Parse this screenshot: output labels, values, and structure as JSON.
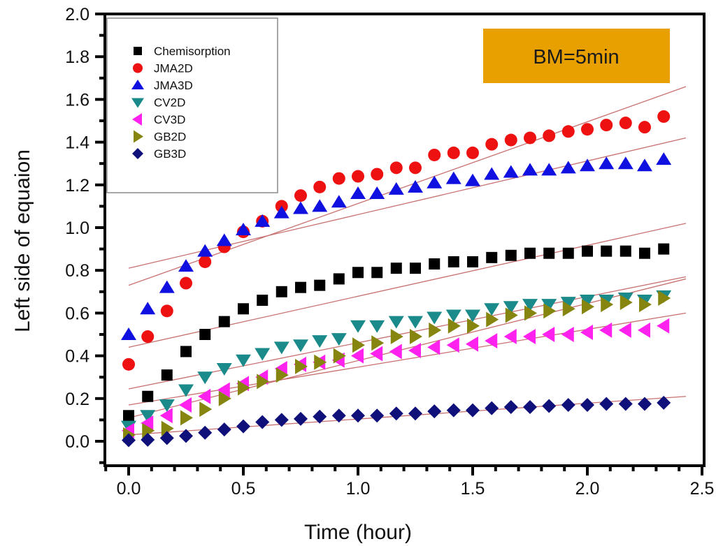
{
  "chart_data": {
    "type": "scatter",
    "title": "",
    "xlabel": "Time (hour)",
    "ylabel": "Left side of equaion",
    "xlim": [
      -0.1,
      2.5
    ],
    "ylim": [
      -0.1,
      2.0
    ],
    "xticks": [
      0.0,
      0.5,
      1.0,
      1.5,
      2.0,
      2.5
    ],
    "xtick_labels": [
      "0.0",
      "0.5",
      "1.0",
      "1.5",
      "2.0",
      "2.5"
    ],
    "yticks": [
      0.0,
      0.2,
      0.4,
      0.6,
      0.8,
      1.0,
      1.2,
      1.4,
      1.6,
      1.8,
      2.0
    ],
    "ytick_labels": [
      "0.0",
      "0.2",
      "0.4",
      "0.6",
      "0.8",
      "1.0",
      "1.2",
      "1.4",
      "1.6",
      "1.8",
      "2.0"
    ],
    "grid": false,
    "legend_position": "top-left",
    "annotation": {
      "text": "BM=5min",
      "background": "#E8A000",
      "position": "top-right"
    },
    "x": [
      0.0,
      0.083,
      0.167,
      0.25,
      0.333,
      0.417,
      0.5,
      0.583,
      0.667,
      0.75,
      0.833,
      0.917,
      1.0,
      1.083,
      1.167,
      1.25,
      1.333,
      1.417,
      1.5,
      1.583,
      1.667,
      1.75,
      1.833,
      1.917,
      2.0,
      2.083,
      2.167,
      2.25,
      2.333
    ],
    "series": [
      {
        "name": "Chemisorption",
        "marker": "square",
        "color": "#000000",
        "values": [
          0.12,
          0.21,
          0.31,
          0.42,
          0.5,
          0.56,
          0.62,
          0.66,
          0.7,
          0.72,
          0.73,
          0.76,
          0.79,
          0.79,
          0.81,
          0.81,
          0.83,
          0.84,
          0.84,
          0.86,
          0.87,
          0.88,
          0.88,
          0.88,
          0.89,
          0.89,
          0.89,
          0.88,
          0.9
        ],
        "fit": [
          0.44,
          1.02
        ]
      },
      {
        "name": "JMA2D",
        "marker": "circle",
        "color": "#EE1111",
        "values": [
          0.36,
          0.49,
          0.61,
          0.74,
          0.84,
          0.91,
          0.98,
          1.03,
          1.1,
          1.15,
          1.19,
          1.23,
          1.24,
          1.25,
          1.28,
          1.28,
          1.34,
          1.35,
          1.35,
          1.39,
          1.41,
          1.42,
          1.43,
          1.45,
          1.46,
          1.48,
          1.49,
          1.47,
          1.52
        ],
        "fit": [
          0.73,
          1.66
        ]
      },
      {
        "name": "JMA3D",
        "marker": "triangle-up",
        "color": "#1010E0",
        "values": [
          0.5,
          0.62,
          0.72,
          0.82,
          0.89,
          0.94,
          0.99,
          1.03,
          1.07,
          1.09,
          1.1,
          1.12,
          1.16,
          1.16,
          1.18,
          1.19,
          1.21,
          1.23,
          1.22,
          1.25,
          1.26,
          1.27,
          1.27,
          1.28,
          1.29,
          1.3,
          1.3,
          1.29,
          1.32
        ],
        "fit": [
          0.81,
          1.42
        ]
      },
      {
        "name": "CV2D",
        "marker": "triangle-down",
        "color": "#1A8A8A",
        "values": [
          0.07,
          0.12,
          0.17,
          0.24,
          0.3,
          0.34,
          0.38,
          0.41,
          0.44,
          0.45,
          0.47,
          0.48,
          0.54,
          0.54,
          0.56,
          0.56,
          0.58,
          0.59,
          0.59,
          0.62,
          0.63,
          0.64,
          0.64,
          0.65,
          0.66,
          0.66,
          0.67,
          0.66,
          0.68
        ],
        "fit": [
          0.245,
          0.77
        ]
      },
      {
        "name": "CV3D",
        "marker": "triangle-left",
        "color": "#FF22EE",
        "values": [
          0.05,
          0.085,
          0.12,
          0.17,
          0.21,
          0.24,
          0.27,
          0.3,
          0.34,
          0.36,
          0.37,
          0.38,
          0.4,
          0.41,
          0.42,
          0.425,
          0.44,
          0.45,
          0.455,
          0.47,
          0.49,
          0.49,
          0.5,
          0.5,
          0.51,
          0.52,
          0.52,
          0.52,
          0.54
        ],
        "fit": [
          0.17,
          0.6
        ]
      },
      {
        "name": "GB2D",
        "marker": "triangle-right",
        "color": "#858510",
        "values": [
          0.03,
          0.05,
          0.06,
          0.11,
          0.15,
          0.2,
          0.25,
          0.28,
          0.31,
          0.35,
          0.37,
          0.4,
          0.45,
          0.46,
          0.49,
          0.49,
          0.52,
          0.54,
          0.54,
          0.57,
          0.59,
          0.6,
          0.61,
          0.62,
          0.63,
          0.64,
          0.65,
          0.64,
          0.67
        ],
        "fit": [
          0.11,
          0.76
        ]
      },
      {
        "name": "GB3D",
        "marker": "diamond",
        "color": "#10107A",
        "values": [
          0.005,
          0.007,
          0.015,
          0.025,
          0.04,
          0.055,
          0.07,
          0.09,
          0.1,
          0.105,
          0.115,
          0.12,
          0.12,
          0.12,
          0.13,
          0.13,
          0.14,
          0.145,
          0.145,
          0.155,
          0.16,
          0.16,
          0.165,
          0.17,
          0.17,
          0.175,
          0.175,
          0.175,
          0.18
        ],
        "fit": [
          0.03,
          0.21
        ]
      }
    ],
    "fit_x_range": [
      0.0,
      2.43
    ],
    "fit_line_color": "#C87070"
  }
}
